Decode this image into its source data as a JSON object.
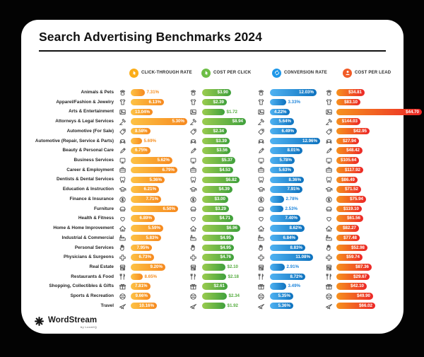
{
  "header": {
    "title": "Search Advertising Benchmarks 2024"
  },
  "footer": {
    "brand": "WordStream",
    "byline": "by LocaliQ"
  },
  "chart_data": {
    "type": "bar",
    "orientation": "horizontal",
    "title": "Search Advertising Benchmarks 2024",
    "legend_position": "top",
    "metrics": [
      {
        "key": "ctr",
        "label": "CLICK-THROUGH RATE",
        "format": "percent",
        "icon": "click-cursor-icon",
        "legend_color": "#FBAD18",
        "outside_text_color": "#F68E1F"
      },
      {
        "key": "cpc",
        "label": "COST PER CLICK",
        "format": "currency",
        "icon": "cursor-dollar-icon",
        "legend_color": "#6CBE45",
        "outside_text_color": "#55AC3F"
      },
      {
        "key": "cvr",
        "label": "CONVERSION RATE",
        "format": "percent",
        "icon": "conversion-arrows-icon",
        "legend_color": "#1E97E8",
        "outside_text_color": "#2187DC"
      },
      {
        "key": "cpl",
        "label": "COST PER LEAD",
        "format": "currency",
        "icon": "lead-person-icon",
        "legend_color": "#F15B27",
        "outside_text_color": "#EC4A26"
      }
    ],
    "rows": [
      {
        "label": "Animals & Pets",
        "icon": "paw-icon",
        "ctr": 7.31,
        "cpc": 3.9,
        "cvr": 12.03,
        "cpl": 34.81,
        "w": {
          "ctr": 20,
          "cpc": 41,
          "cvr": 66,
          "cpl": 40
        },
        "out": [
          "ctr"
        ]
      },
      {
        "label": "Apparel/Fashion & Jewelry",
        "icon": "tshirt-icon",
        "ctr": 6.13,
        "cpc": 2.39,
        "cvr": 3.33,
        "cpl": 83.1,
        "w": {
          "ctr": 47,
          "cpc": 35,
          "cvr": 23,
          "cpl": 34
        },
        "out": [
          "cvr"
        ]
      },
      {
        "label": "Arts & Entertainment",
        "icon": "picture-icon",
        "ctr": 13.04,
        "cpc": 1.72,
        "cvr": 4.22,
        "cpl": 44.7,
        "w": {
          "ctr": 25,
          "cpc": 32,
          "cvr": 27,
          "cpl": 121
        },
        "out": [
          "cpc"
        ]
      },
      {
        "label": "Attorneys & Legal Services",
        "icon": "gavel-icon",
        "ctr": 5.3,
        "cpc": 8.94,
        "cvr": 5.64,
        "cpl": 144.03,
        "w": {
          "ctr": 80,
          "cpc": 62,
          "cvr": 34,
          "cpl": 34
        },
        "out": []
      },
      {
        "label": "Automotive (For Sale)",
        "icon": "price-tag-icon",
        "ctr": 8.58,
        "cpc": 2.34,
        "cvr": 6.49,
        "cpl": 42.95,
        "w": {
          "ctr": 24,
          "cpc": 35,
          "cvr": 38,
          "cpl": 47
        },
        "out": []
      },
      {
        "label": "Automotive (Repair, Service & Parts)",
        "icon": "car-icon",
        "ctr": 5.69,
        "cpc": 3.39,
        "cvr": 12.96,
        "cpl": 27.94,
        "w": {
          "ctr": 16,
          "cpc": 39,
          "cvr": 71,
          "cpl": 32
        },
        "out": [
          "ctr"
        ]
      },
      {
        "label": "Beauty & Personal Care",
        "icon": "brush-icon",
        "ctr": 6.75,
        "cpc": 3.56,
        "cvr": 8.01,
        "cpl": 48.42,
        "w": {
          "ctr": 27,
          "cpc": 40,
          "cvr": 46,
          "cpl": 37
        },
        "out": []
      },
      {
        "label": "Business Services",
        "icon": "monitor-icon",
        "ctr": 5.62,
        "cpc": 5.37,
        "cvr": 5.78,
        "cpl": 105.64,
        "w": {
          "ctr": 59,
          "cpc": 47,
          "cvr": 35,
          "cpl": 32
        },
        "out": []
      },
      {
        "label": "Career & Employment",
        "icon": "briefcase-icon",
        "ctr": 6.79,
        "cpc": 4.53,
        "cvr": 5.63,
        "cpl": 117.92,
        "w": {
          "ctr": 66,
          "cpc": 44,
          "cvr": 34,
          "cpl": 38
        },
        "out": []
      },
      {
        "label": "Dentists & Dental Services",
        "icon": "tooth-icon",
        "ctr": 5.36,
        "cpc": 6.82,
        "cvr": 8.36,
        "cpl": 86.49,
        "w": {
          "ctr": 48,
          "cpc": 53,
          "cvr": 48,
          "cpl": 30
        },
        "out": []
      },
      {
        "label": "Education & Instruction",
        "icon": "grad-cap-icon",
        "ctr": 6.21,
        "cpc": 4.39,
        "cvr": 7.91,
        "cpl": 71.52,
        "w": {
          "ctr": 40,
          "cpc": 43,
          "cvr": 46,
          "cpl": 35
        },
        "out": []
      },
      {
        "label": "Finance & Insurance",
        "icon": "dollar-coin-icon",
        "ctr": 7.71,
        "cpc": 3.0,
        "cvr": 2.78,
        "cpl": 75.94,
        "w": {
          "ctr": 43,
          "cpc": 37,
          "cvr": 20,
          "cpl": 42
        },
        "out": [
          "cvr"
        ]
      },
      {
        "label": "Furniture",
        "icon": "armchair-icon",
        "ctr": 6.5,
        "cpc": 3.29,
        "cvr": 2.53,
        "cpl": 119.1,
        "w": {
          "ctr": 67,
          "cpc": 38,
          "cvr": 19,
          "cpl": 36
        },
        "out": [
          "cvr"
        ]
      },
      {
        "label": "Health & Fitness",
        "icon": "heart-icon",
        "ctr": 6.89,
        "cpc": 4.71,
        "cvr": 7.4,
        "cpl": 61.56,
        "w": {
          "ctr": 34,
          "cpc": 44,
          "cvr": 43,
          "cpl": 38
        },
        "out": []
      },
      {
        "label": "Home & Home Improvement",
        "icon": "house-icon",
        "ctr": 5.59,
        "cpc": 6.96,
        "cvr": 8.62,
        "cpl": 82.27,
        "w": {
          "ctr": 46,
          "cpc": 54,
          "cvr": 49,
          "cpl": 32
        },
        "out": []
      },
      {
        "label": "Industrial & Commercial",
        "icon": "factory-icon",
        "ctr": 5.83,
        "cpc": 4.95,
        "cvr": 6.84,
        "cpl": 77.48,
        "w": {
          "ctr": 43,
          "cpc": 45,
          "cvr": 40,
          "cpl": 33
        },
        "out": []
      },
      {
        "label": "Personal Services",
        "icon": "hand-icon",
        "ctr": 7.95,
        "cpc": 4.95,
        "cvr": 8.83,
        "cpl": 52.98,
        "w": {
          "ctr": 30,
          "cpc": 45,
          "cvr": 50,
          "cpl": 44
        },
        "out": []
      },
      {
        "label": "Physicians & Surgeons",
        "icon": "medical-cross-icon",
        "ctr": 6.73,
        "cpc": 4.76,
        "cvr": 11.08,
        "cpl": 59.74,
        "w": {
          "ctr": 33,
          "cpc": 45,
          "cvr": 61,
          "cpl": 37
        },
        "out": []
      },
      {
        "label": "Real Estate",
        "icon": "storefront-icon",
        "ctr": 9.2,
        "cpc": 2.1,
        "cvr": 2.91,
        "cpl": 87.36,
        "w": {
          "ctr": 49,
          "cpc": 33,
          "cvr": 21,
          "cpl": 50
        },
        "out": [
          "cpc",
          "cvr"
        ]
      },
      {
        "label": "Restaurants & Food",
        "icon": "cutlery-icon",
        "ctr": 8.65,
        "cpc": 2.18,
        "cvr": 8.72,
        "cpl": 29.67,
        "w": {
          "ctr": 17,
          "cpc": 34,
          "cvr": 50,
          "cpl": 47
        },
        "out": [
          "ctr",
          "cpc"
        ]
      },
      {
        "label": "Shopping, Collectibles & Gifts",
        "icon": "gift-icon",
        "ctr": 7.81,
        "cpc": 2.61,
        "cvr": 3.49,
        "cpl": 42.1,
        "w": {
          "ctr": 24,
          "cpc": 36,
          "cvr": 23,
          "cpl": 43
        },
        "out": [
          "cvr"
        ]
      },
      {
        "label": "Sports & Recreation",
        "icon": "ball-icon",
        "ctr": 9.66,
        "cpc": 2.34,
        "cvr": 5.35,
        "cpl": 49.9,
        "w": {
          "ctr": 28,
          "cpc": 35,
          "cvr": 33,
          "cpl": 52
        },
        "out": [
          "cpc"
        ]
      },
      {
        "label": "Travel",
        "icon": "plane-icon",
        "ctr": 10.16,
        "cpc": 1.92,
        "cvr": 5.36,
        "cpl": 66.02,
        "w": {
          "ctr": 37,
          "cpc": 33,
          "cvr": 33,
          "cpl": 55
        },
        "out": [
          "cpc"
        ]
      }
    ]
  }
}
